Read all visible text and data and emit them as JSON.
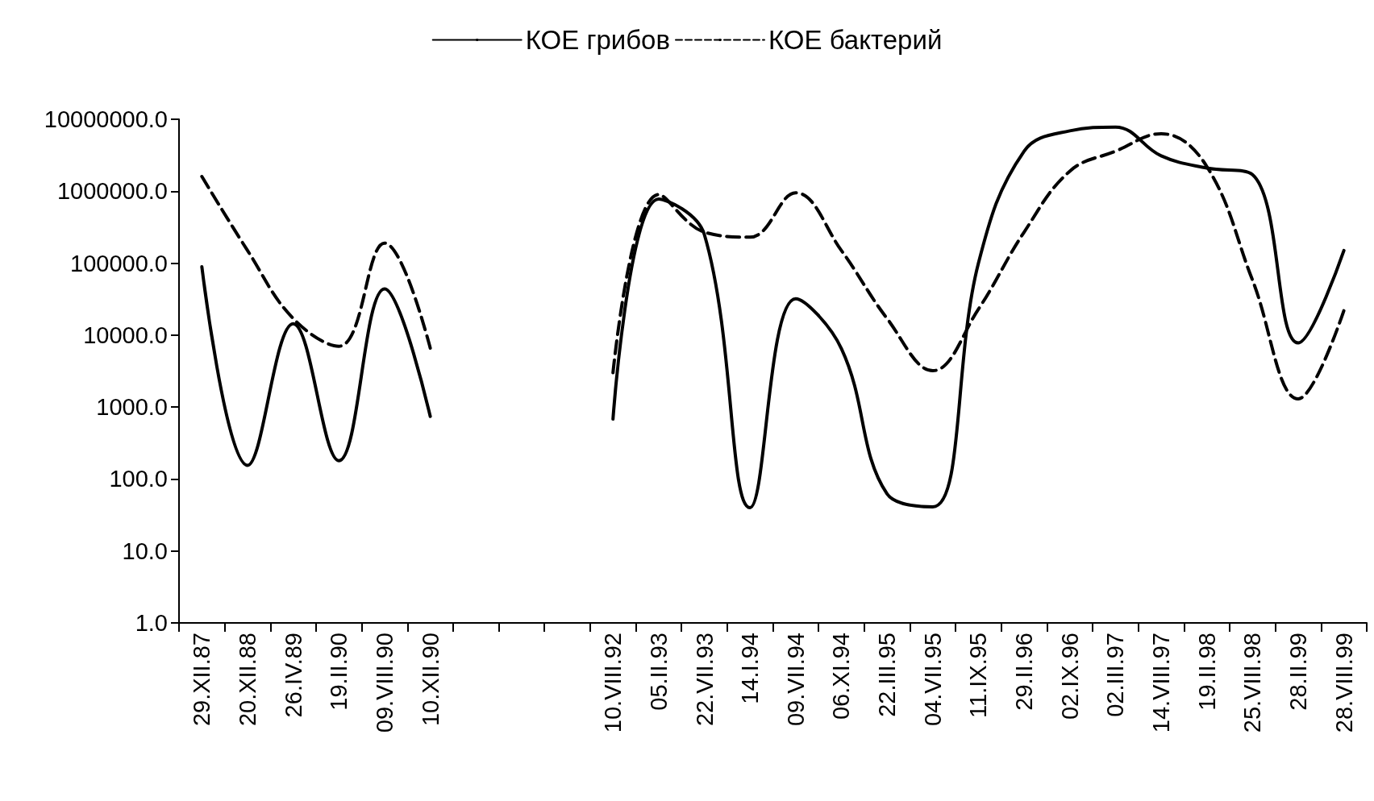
{
  "chart_data": {
    "type": "line",
    "log": "y",
    "grid": false,
    "legend": "top",
    "marker": "none",
    "categories": [
      "29.XII.87",
      "20.XII.88",
      "26.IV.89",
      "19.II.90",
      "09.VIII.90",
      "10.XII.90",
      null,
      null,
      null,
      "10.VIII.92",
      "05.II.93",
      "22.VII.93",
      "14.I.94",
      "09.VII.94",
      "06.XI.94",
      "22.III.95",
      "04.VII.95",
      "11.IX.95",
      "29.II.96",
      "02.IX.96",
      "02.III.97",
      "14.VIII.97",
      "19.II.98",
      "25.VIII.98",
      "28.II.99",
      "28.VIII.99"
    ],
    "ylim": [
      1,
      10000000
    ],
    "yticks": [
      {
        "value": 1,
        "label": "1.0"
      },
      {
        "value": 10,
        "label": "10.0"
      },
      {
        "value": 100,
        "label": "100.0"
      },
      {
        "value": 1000,
        "label": "1000.0"
      },
      {
        "value": 10000,
        "label": "10000.0"
      },
      {
        "value": 100000,
        "label": "100000.0"
      },
      {
        "value": 1000000,
        "label": "1000000.0"
      },
      {
        "value": 10000000,
        "label": "10000000.0"
      }
    ],
    "series": [
      {
        "name": "КОЕ грибов",
        "color": "#000000",
        "line_style": "solid",
        "values": [
          89000,
          155,
          14400,
          180,
          44000,
          740,
          null,
          null,
          null,
          680,
          780000,
          250000,
          40,
          32000,
          6500,
          62,
          41,
          100000,
          3600000,
          6900000,
          7800000,
          3100000,
          2100000,
          1700000,
          7800,
          150000
        ]
      },
      {
        "name": "КОЕ бактерий",
        "color": "#000000",
        "line_style": "dashed",
        "values": [
          1600000,
          150000,
          17000,
          7000,
          190000,
          6600,
          null,
          null,
          null,
          3000,
          900000,
          270000,
          230000,
          950000,
          150000,
          17000,
          3200,
          23000,
          270000,
          1900000,
          3600000,
          6300000,
          2200000,
          58000,
          1300,
          22000
        ]
      }
    ]
  }
}
